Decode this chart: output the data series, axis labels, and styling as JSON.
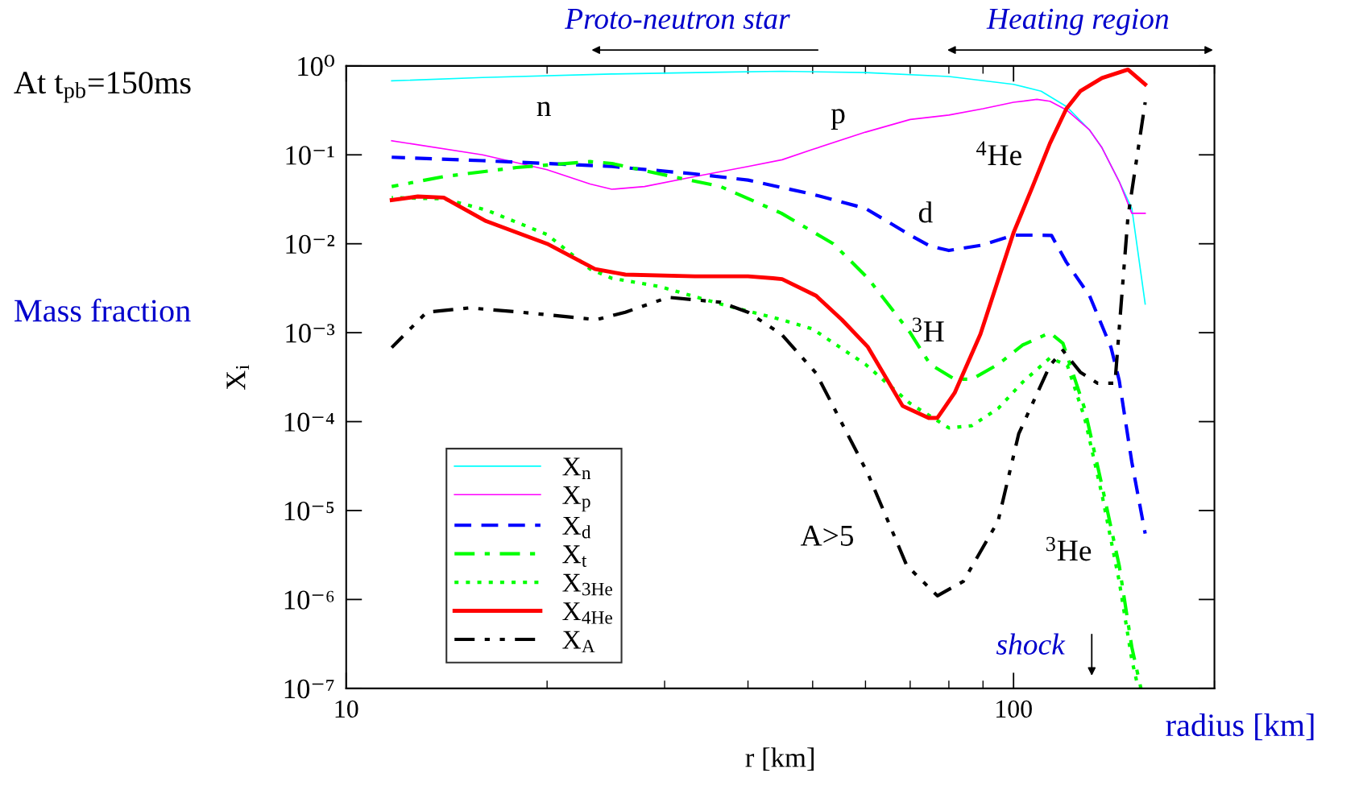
{
  "chart_data": {
    "type": "line",
    "xlabel": "r [km]",
    "ylabel": "X$_{i}$",
    "log": "xy",
    "xlim": [
      10,
      200
    ],
    "ylim": [
      1e-07,
      1
    ],
    "xticks": [
      10,
      100
    ],
    "yticks": [
      {
        "value": 1e-07,
        "label": "10⁻⁷"
      },
      {
        "value": 1e-06,
        "label": "10⁻⁶"
      },
      {
        "value": 1e-05,
        "label": "10⁻⁵"
      },
      {
        "value": 0.0001,
        "label": "10⁻⁴"
      },
      {
        "value": 0.001,
        "label": "10⁻³"
      },
      {
        "value": 0.01,
        "label": "10⁻²"
      },
      {
        "value": 0.1,
        "label": "10⁻¹"
      },
      {
        "value": 1,
        "label": "10⁰"
      }
    ],
    "grid": false,
    "legend": "bottom left",
    "series": [
      {
        "name": "X$_{n}$",
        "color": "#00ffff",
        "line_style": "solid",
        "x": [
          11.7,
          16.0,
          25.0,
          36.4,
          45.0,
          60.0,
          80.0,
          100,
          110,
          120,
          130,
          135.7,
          144.0,
          150.4,
          157.5
        ],
        "values": [
          0.68,
          0.74,
          0.81,
          0.85,
          0.87,
          0.84,
          0.76,
          0.62,
          0.52,
          0.35,
          0.19,
          0.12,
          0.05,
          0.025,
          0.0021
        ]
      },
      {
        "name": "X$_{p}$",
        "color": "#ff00ff",
        "line_style": "solid",
        "x": [
          11.7,
          16.0,
          20.0,
          23.2,
          25.0,
          28.0,
          33.3,
          40.0,
          45.0,
          50.0,
          60.0,
          70.0,
          80.0,
          90.0,
          100,
          108.4,
          113.4,
          120,
          130,
          135.7,
          144.0,
          150.4,
          157.5
        ],
        "values": [
          0.144,
          0.1,
          0.068,
          0.047,
          0.041,
          0.044,
          0.057,
          0.074,
          0.088,
          0.115,
          0.18,
          0.25,
          0.28,
          0.33,
          0.39,
          0.42,
          0.4,
          0.32,
          0.19,
          0.12,
          0.05,
          0.022,
          0.022
        ]
      },
      {
        "name": "X$_{d}$",
        "color": "#0000ff",
        "line_style": "dashed",
        "x": [
          11.7,
          16.0,
          20.0,
          25.0,
          33.3,
          40.0,
          50.0,
          60.0,
          70.0,
          75.0,
          80.0,
          90.0,
          100,
          110,
          114.0,
          120,
          130,
          140,
          144.0,
          150.4,
          157.5
        ],
        "values": [
          0.094,
          0.086,
          0.08,
          0.074,
          0.061,
          0.052,
          0.036,
          0.025,
          0.0125,
          0.0094,
          0.0084,
          0.0097,
          0.0125,
          0.0125,
          0.0124,
          0.0062,
          0.0026,
          0.00068,
          0.00029,
          3.5e-05,
          5.5e-06
        ]
      },
      {
        "name": "X$_{t}$",
        "color": "#00ff00",
        "line_style": "dashdot",
        "x": [
          11.7,
          14.0,
          18.0,
          23.2,
          25.0,
          29.5,
          36.4,
          44.9,
          53.7,
          60.5,
          70.0,
          75.0,
          81.6,
          86.6,
          94.8,
          103.3,
          110,
          113.4,
          118.6,
          127.8,
          135.7,
          144.0,
          150.4,
          155.2
        ],
        "values": [
          0.044,
          0.057,
          0.072,
          0.084,
          0.08,
          0.061,
          0.044,
          0.022,
          0.01,
          0.0041,
          0.001,
          0.00044,
          0.0003,
          0.0003,
          0.00044,
          0.00073,
          0.0009,
          0.001,
          0.00076,
          0.00014,
          1.9e-05,
          2.4e-06,
          2.9e-07,
          1e-07
        ]
      },
      {
        "name": "X$_{3He}$",
        "color": "#00ff00",
        "line_style": "dotted",
        "x": [
          11.7,
          14.0,
          16.2,
          20.0,
          23.2,
          25.0,
          29.5,
          36.4,
          44.9,
          50.0,
          60.0,
          70.0,
          80.0,
          86.6,
          94.8,
          103.3,
          113.4,
          120.4,
          127.8,
          135.7,
          144.0,
          150.4,
          153.8
        ],
        "values": [
          0.033,
          0.032,
          0.024,
          0.0127,
          0.0052,
          0.0041,
          0.0033,
          0.0021,
          0.0014,
          0.0011,
          0.00044,
          0.00016,
          8.5e-05,
          9e-05,
          0.00014,
          0.00028,
          0.00052,
          0.00043,
          0.00011,
          1.5e-05,
          1.6e-06,
          2.1e-07,
          1e-07
        ]
      },
      {
        "name": "X$_{4He}$",
        "color": "#ff0000",
        "line_style": "solid",
        "x": [
          11.7,
          12.8,
          14.0,
          16.2,
          20.0,
          23.6,
          26.2,
          33.3,
          40.0,
          43.6,
          45.0,
          50.6,
          55.3,
          60.5,
          68.2,
          74.6,
          76.9,
          81.6,
          89.2,
          100,
          106.8,
          113.4,
          120,
          125.9,
          135.7,
          148.4,
          157.5
        ],
        "values": [
          0.031,
          0.034,
          0.033,
          0.018,
          0.01,
          0.0052,
          0.0045,
          0.0043,
          0.0043,
          0.0041,
          0.004,
          0.0026,
          0.0014,
          0.00069,
          0.00015,
          0.00011,
          0.00011,
          0.00021,
          0.00096,
          0.0133,
          0.044,
          0.135,
          0.33,
          0.52,
          0.73,
          0.91,
          0.62
        ]
      },
      {
        "name": "X$_{A}$",
        "color": "#000000",
        "line_style": "dashdotdot",
        "x": [
          11.7,
          13.2,
          15.3,
          18.3,
          23.7,
          26.2,
          30.4,
          36.4,
          40.0,
          44.9,
          50.6,
          60.5,
          69.2,
          76.9,
          84.1,
          94.8,
          101.8,
          113.4,
          118.6,
          125.9,
          133.7,
          141.9,
          148.4,
          157.5
        ],
        "values": [
          0.00068,
          0.0017,
          0.0019,
          0.0017,
          0.0014,
          0.0017,
          0.0025,
          0.0022,
          0.0017,
          0.00096,
          0.00035,
          2.6e-05,
          2.4e-06,
          1.1e-06,
          1.6e-06,
          7.6e-06,
          7.3e-05,
          0.00043,
          0.00063,
          0.00036,
          0.00027,
          0.00027,
          0.02,
          0.39
        ]
      }
    ],
    "annotations": [
      "At t$_{pb}$=150ms",
      "Mass fraction",
      "radius [km]",
      "n",
      "p",
      "$^{4}$He",
      "d",
      "$^{3}$H",
      "A>5",
      "$^{3}$He",
      "Proto-neutron star",
      "Heating region",
      "shock"
    ]
  }
}
